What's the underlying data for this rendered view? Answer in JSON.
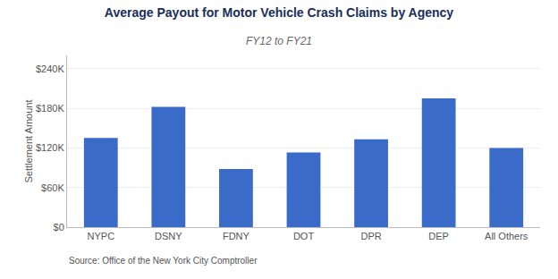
{
  "chart_data": {
    "type": "bar",
    "title": "Average Payout for Motor Vehicle Crash Claims by Agency",
    "subtitle": "FY12 to FY21",
    "categories": [
      "NYPC",
      "DSNY",
      "FDNY",
      "DOT",
      "DPR",
      "DEP",
      "All Others"
    ],
    "values": [
      135000,
      182000,
      88000,
      113000,
      133000,
      195000,
      120000
    ],
    "color": "#3A6BC9",
    "ylabel": "Settlement Amount",
    "ylim": [
      0,
      260000
    ],
    "yticks": [
      {
        "value": 0,
        "label": "$0"
      },
      {
        "value": 60000,
        "label": "$60K"
      },
      {
        "value": 120000,
        "label": "$120K"
      },
      {
        "value": 180000,
        "label": "$180K"
      },
      {
        "value": 240000,
        "label": "$240K"
      }
    ],
    "grid": true,
    "annotations": [
      "Source: Office of the New York City Comptroller"
    ]
  }
}
